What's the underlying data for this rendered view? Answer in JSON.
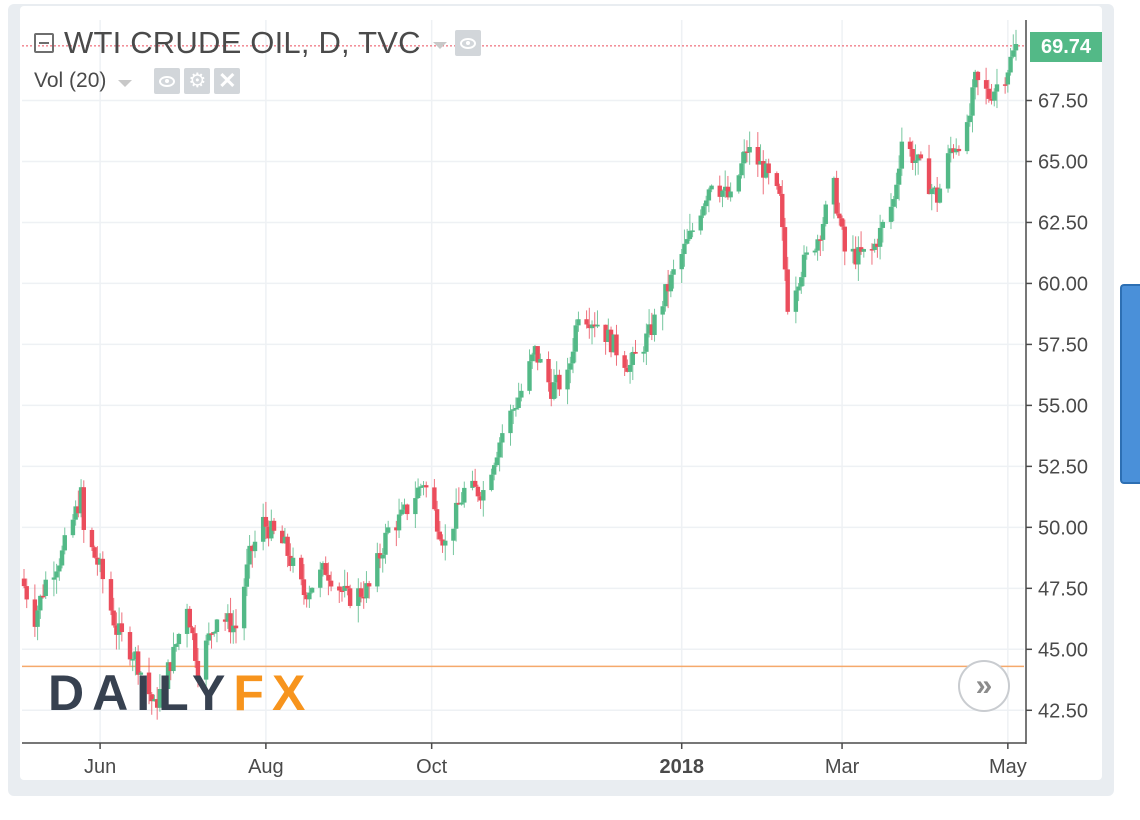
{
  "header": {
    "title": "WTI CRUDE OIL, D, TVC",
    "indicator": "Vol (20)",
    "icons": [
      "collapse-icon",
      "caret-down-icon",
      "eye-icon",
      "gear-icon",
      "close-icon"
    ]
  },
  "price_tag": "69.74",
  "logo": {
    "daily": "DAILY",
    "fx": "FX"
  },
  "colors": {
    "up": "#53b987",
    "down": "#eb4d5c",
    "grid": "#eef1f4",
    "axis_text": "#4a4a4a",
    "price_line": "#eb4d5c",
    "support_line": "#f5a96b",
    "price_tag_bg": "#53b987",
    "logo_daily": "#374150",
    "logo_fx": "#f7941d"
  },
  "chart_data": {
    "type": "candlestick",
    "title": "WTI CRUDE OIL, D, TVC",
    "ylim": [
      41.2,
      70.8
    ],
    "y_ticks": [
      "42.50",
      "45.00",
      "47.50",
      "50.00",
      "52.50",
      "55.00",
      "57.50",
      "60.00",
      "62.50",
      "65.00",
      "67.50"
    ],
    "x_ticks": [
      {
        "label": "Jun",
        "date": "2017-06-01",
        "bold": false
      },
      {
        "label": "Aug",
        "date": "2017-08-01",
        "bold": false
      },
      {
        "label": "Oct",
        "date": "2017-10-01",
        "bold": false
      },
      {
        "label": "2018",
        "date": "2018-01-01",
        "bold": true
      },
      {
        "label": "Mar",
        "date": "2018-03-01",
        "bold": false
      },
      {
        "label": "May",
        "date": "2018-05-01",
        "bold": false
      }
    ],
    "x_range": [
      "2017-05-04",
      "2018-05-04"
    ],
    "last_price": 69.74,
    "horizontal_level": 44.3,
    "grid": true,
    "anchors": [
      [
        "2017-05-04",
        47.6
      ],
      [
        "2017-05-08",
        46.3
      ],
      [
        "2017-05-12",
        47.8
      ],
      [
        "2017-05-18",
        48.9
      ],
      [
        "2017-05-25",
        51.3
      ],
      [
        "2017-05-26",
        49.8
      ],
      [
        "2017-06-01",
        48.3
      ],
      [
        "2017-06-07",
        45.8
      ],
      [
        "2017-06-14",
        44.7
      ],
      [
        "2017-06-21",
        42.6
      ],
      [
        "2017-06-28",
        44.8
      ],
      [
        "2017-07-03",
        46.9
      ],
      [
        "2017-07-07",
        44.2
      ],
      [
        "2017-07-14",
        46.4
      ],
      [
        "2017-07-21",
        45.9
      ],
      [
        "2017-07-26",
        48.8
      ],
      [
        "2017-07-31",
        50.2
      ],
      [
        "2017-08-08",
        49.2
      ],
      [
        "2017-08-15",
        47.3
      ],
      [
        "2017-08-23",
        48.3
      ],
      [
        "2017-08-31",
        47.1
      ],
      [
        "2017-09-08",
        47.5
      ],
      [
        "2017-09-15",
        49.9
      ],
      [
        "2017-09-20",
        50.4
      ],
      [
        "2017-09-28",
        51.9
      ],
      [
        "2017-10-06",
        49.3
      ],
      [
        "2017-10-13",
        51.5
      ],
      [
        "2017-10-20",
        51.5
      ],
      [
        "2017-10-27",
        53.9
      ],
      [
        "2017-11-03",
        55.6
      ],
      [
        "2017-11-08",
        57.2
      ],
      [
        "2017-11-14",
        55.7
      ],
      [
        "2017-11-20",
        56.1
      ],
      [
        "2017-11-24",
        58.9
      ],
      [
        "2017-12-01",
        58.4
      ],
      [
        "2017-12-08",
        57.3
      ],
      [
        "2017-12-13",
        56.6
      ],
      [
        "2017-12-20",
        57.9
      ],
      [
        "2017-12-29",
        60.4
      ],
      [
        "2018-01-04",
        61.9
      ],
      [
        "2018-01-12",
        64.3
      ],
      [
        "2018-01-19",
        63.4
      ],
      [
        "2018-01-25",
        65.5
      ],
      [
        "2018-01-31",
        64.7
      ],
      [
        "2018-02-06",
        63.4
      ],
      [
        "2018-02-09",
        59.2
      ],
      [
        "2018-02-14",
        60.6
      ],
      [
        "2018-02-20",
        61.9
      ],
      [
        "2018-02-26",
        63.9
      ],
      [
        "2018-03-02",
        61.3
      ],
      [
        "2018-03-07",
        61.1
      ],
      [
        "2018-03-12",
        61.3
      ],
      [
        "2018-03-20",
        63.4
      ],
      [
        "2018-03-23",
        65.9
      ],
      [
        "2018-03-29",
        64.9
      ],
      [
        "2018-04-05",
        63.5
      ],
      [
        "2018-04-10",
        65.5
      ],
      [
        "2018-04-16",
        66.2
      ],
      [
        "2018-04-19",
        68.3
      ],
      [
        "2018-04-24",
        67.7
      ],
      [
        "2018-04-30",
        68.6
      ],
      [
        "2018-05-04",
        69.7
      ]
    ]
  }
}
